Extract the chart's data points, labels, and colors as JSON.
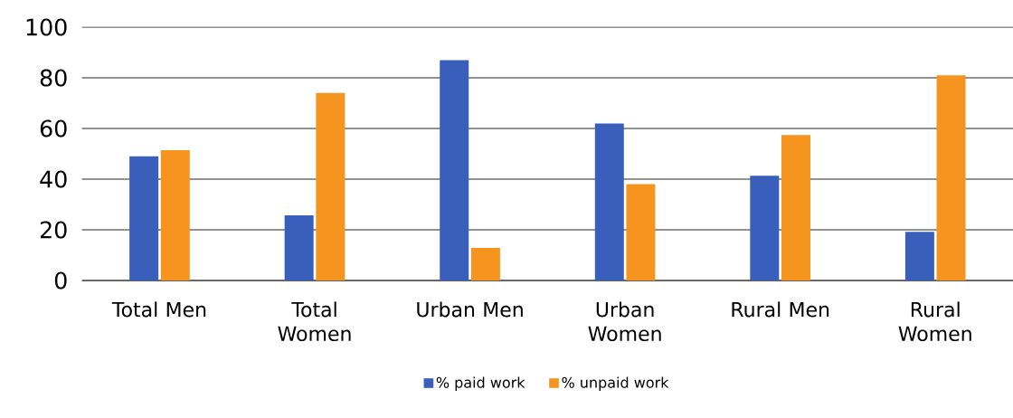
{
  "chart_data": {
    "type": "bar",
    "categories": [
      "Total Men",
      "Total Women",
      "Urban Men",
      "Urban Women",
      "Rural Men",
      "Rural Women"
    ],
    "series": [
      {
        "name": "% paid work",
        "color": "#3a5fba",
        "values": [
          49,
          25.7,
          87,
          62,
          41.3,
          19.2
        ]
      },
      {
        "name": "% unpaid work",
        "color": "#f5941f",
        "values": [
          51.4,
          74,
          12.9,
          38,
          57.4,
          81
        ]
      }
    ],
    "ylim": [
      0,
      100
    ],
    "yticks": [
      0,
      20,
      40,
      60,
      80,
      100
    ],
    "grid": "y",
    "legend": "bottom"
  }
}
